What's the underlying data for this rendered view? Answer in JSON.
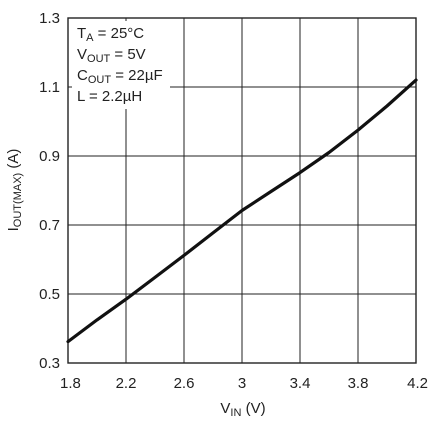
{
  "chart_data": {
    "type": "line",
    "title": "",
    "xlabel": {
      "main": "V",
      "sub": "IN",
      "unit": " (V)"
    },
    "ylabel": {
      "main": "I",
      "sub": "OUT(MAX)",
      "unit": " (A)"
    },
    "xlim": [
      1.8,
      4.2
    ],
    "ylim": [
      0.3,
      1.3
    ],
    "x_ticks": [
      1.8,
      2.2,
      2.6,
      3,
      3.4,
      3.8,
      4.2
    ],
    "x_tick_labels": [
      "1.8",
      "2.2",
      "2.6",
      "3",
      "3.4",
      "3.8",
      "4.2"
    ],
    "y_ticks": [
      0.3,
      0.5,
      0.7,
      0.9,
      1.1,
      1.3
    ],
    "y_tick_labels": [
      "0.3",
      "0.5",
      "0.7",
      "0.9",
      "1.1",
      "1.3"
    ],
    "grid": true,
    "series": [
      {
        "x": [
          1.8,
          2.0,
          2.2,
          2.4,
          2.6,
          2.8,
          3.0,
          3.2,
          3.4,
          3.6,
          3.8,
          4.0,
          4.2
        ],
        "y": [
          0.362,
          0.425,
          0.485,
          0.548,
          0.612,
          0.677,
          0.742,
          0.797,
          0.852,
          0.91,
          0.975,
          1.045,
          1.12
        ]
      }
    ],
    "annotations": [
      {
        "main": "T",
        "sub": "A",
        "rest": " = 25°C"
      },
      {
        "main": "V",
        "sub": "OUT",
        "rest": " = 5V"
      },
      {
        "main": "C",
        "sub": "OUT",
        "rest": " = 22µF"
      },
      {
        "main": "L",
        "sub": "",
        "rest": " = 2.2µH"
      }
    ]
  }
}
